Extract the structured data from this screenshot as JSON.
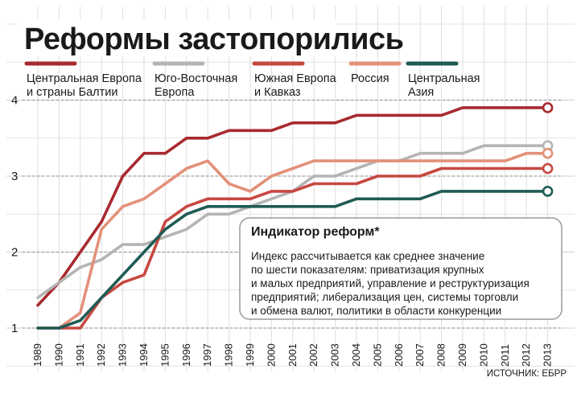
{
  "chart_data": {
    "type": "line",
    "title": "Реформы застопорились",
    "x": [
      "1989",
      "1990",
      "1991",
      "1992",
      "1993",
      "1994",
      "1995",
      "1996",
      "1997",
      "1998",
      "1999",
      "2000",
      "2001",
      "2002",
      "2003",
      "2004",
      "2005",
      "2006",
      "2007",
      "2008",
      "2009",
      "2010",
      "2011",
      "2012",
      "2013"
    ],
    "ylim": [
      0.9,
      4.2
    ],
    "yticks": [
      "1",
      "2",
      "3",
      "4"
    ],
    "series": [
      {
        "name_line1": "Центральная Европа",
        "name_line2": "и страны Балтии",
        "color": "#a82a2f",
        "values": [
          1.3,
          1.6,
          2.0,
          2.4,
          3.0,
          3.3,
          3.3,
          3.5,
          3.5,
          3.6,
          3.6,
          3.6,
          3.7,
          3.7,
          3.7,
          3.8,
          3.8,
          3.8,
          3.8,
          3.8,
          3.9,
          3.9,
          3.9,
          3.9,
          3.9
        ]
      },
      {
        "name_line1": "Юго-Восточная",
        "name_line2": "Европа",
        "color": "#b4b4b4",
        "values": [
          1.4,
          1.6,
          1.8,
          1.9,
          2.1,
          2.1,
          2.2,
          2.3,
          2.5,
          2.5,
          2.6,
          2.7,
          2.8,
          3.0,
          3.0,
          3.1,
          3.2,
          3.2,
          3.3,
          3.3,
          3.3,
          3.4,
          3.4,
          3.4,
          3.4
        ]
      },
      {
        "name_line1": "Южная Европа",
        "name_line2": "и Кавказ",
        "color": "#c64841",
        "values": [
          1.0,
          1.0,
          1.0,
          1.4,
          1.6,
          1.7,
          2.4,
          2.6,
          2.7,
          2.7,
          2.7,
          2.8,
          2.8,
          2.9,
          2.9,
          2.9,
          3.0,
          3.0,
          3.0,
          3.1,
          3.1,
          3.1,
          3.1,
          3.1,
          3.1
        ]
      },
      {
        "name_line1": "Россия",
        "name_line2": "",
        "color": "#e3917a",
        "values": [
          1.0,
          1.0,
          1.2,
          2.3,
          2.6,
          2.7,
          2.9,
          3.1,
          3.2,
          2.9,
          2.8,
          3.0,
          3.1,
          3.2,
          3.2,
          3.2,
          3.2,
          3.2,
          3.2,
          3.2,
          3.2,
          3.2,
          3.2,
          3.3,
          3.3
        ]
      },
      {
        "name_line1": "Центральная",
        "name_line2": "Азия",
        "color": "#1f5b55",
        "values": [
          1.0,
          1.0,
          1.1,
          1.4,
          1.7,
          2.0,
          2.3,
          2.5,
          2.6,
          2.6,
          2.6,
          2.6,
          2.6,
          2.6,
          2.6,
          2.7,
          2.7,
          2.7,
          2.7,
          2.8,
          2.8,
          2.8,
          2.8,
          2.8,
          2.8
        ]
      }
    ],
    "annotation": {
      "title": "Индикатор реформ*",
      "lines": [
        "Индекс рассчитывается как среднее значение",
        "по шести показателям: приватизация крупных",
        "и малых предприятий, управление и реструктуризация",
        "предприятий; либерализация цен, системы торговли",
        "и обмена валют, политики в области конкуренции"
      ]
    },
    "source": "ИСТОЧНИК: ЕБРР"
  }
}
